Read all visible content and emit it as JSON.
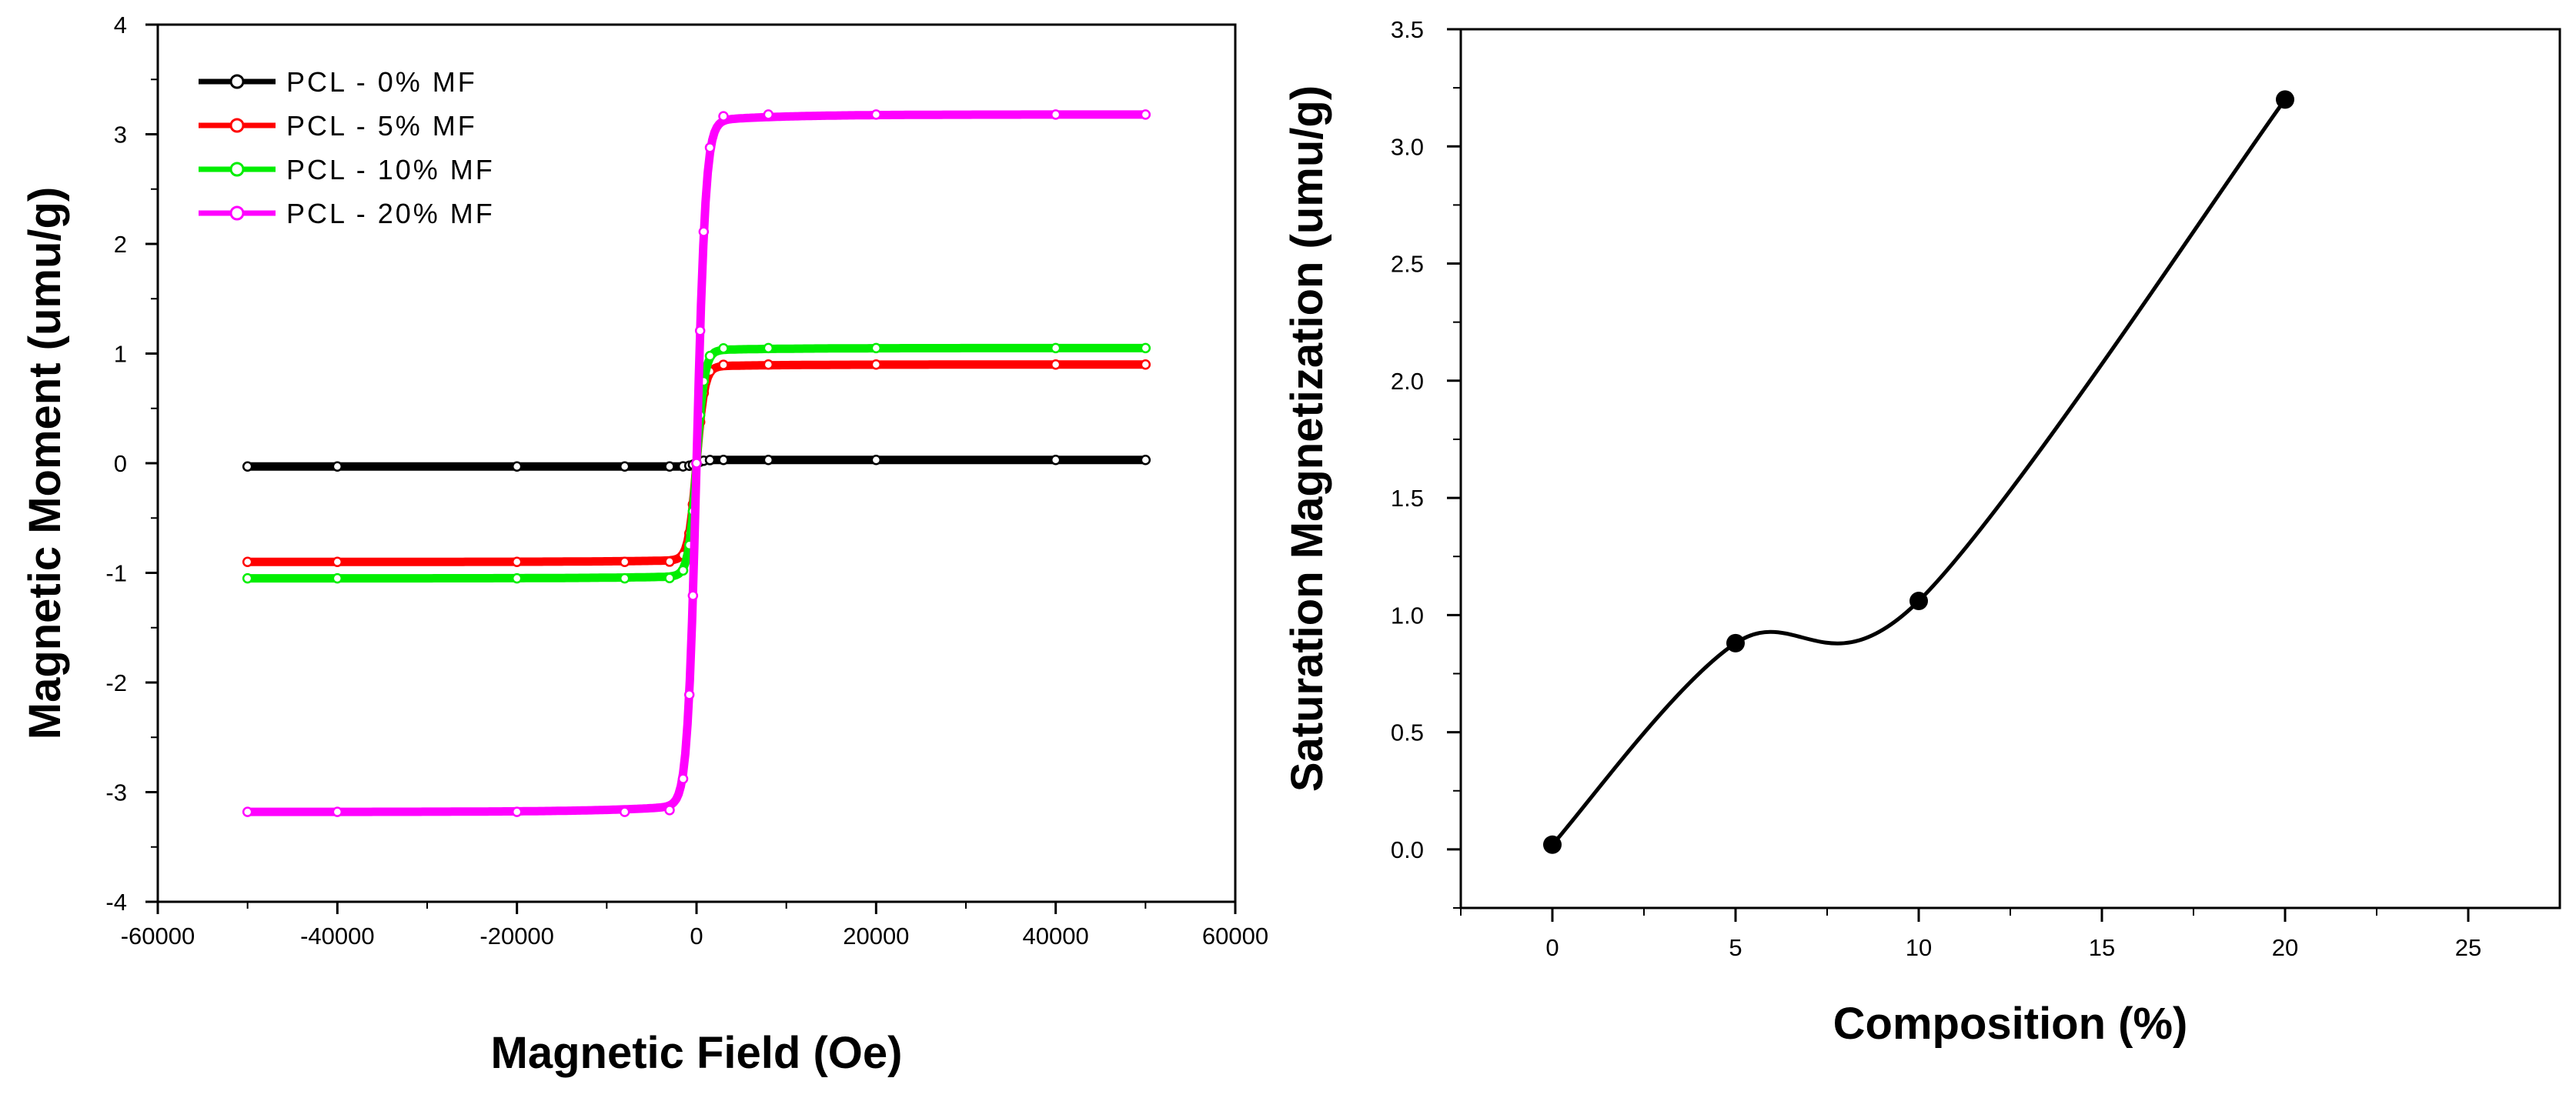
{
  "chart_data": [
    {
      "type": "line",
      "title": "",
      "xlabel": "Magnetic Field (Oe)",
      "ylabel": "Magnetic Moment (umu/g)",
      "xlim": [
        -60000,
        60000
      ],
      "ylim": [
        -4,
        4
      ],
      "x_ticks": [
        "-60000",
        "-40000",
        "-20000",
        "0",
        "20000",
        "40000",
        "60000"
      ],
      "y_ticks": [
        "-4",
        "-3",
        "-2",
        "-1",
        "0",
        "1",
        "2",
        "3",
        "4"
      ],
      "x_tick_values": [
        -60000,
        -40000,
        -20000,
        0,
        20000,
        40000,
        60000
      ],
      "y_tick_values": [
        -4,
        -3,
        -2,
        -1,
        0,
        1,
        2,
        3,
        4
      ],
      "legend_position": "top-left",
      "series": [
        {
          "name": "PCL - 0% MF",
          "color": "#000000",
          "Ms": 0.03,
          "knee": 800,
          "x": [
            -50000,
            -40000,
            -20000,
            -5000,
            -1000,
            0,
            1000,
            5000,
            20000,
            40000,
            50000
          ],
          "y": [
            -0.03,
            -0.03,
            -0.03,
            -0.03,
            -0.02,
            0.0,
            0.02,
            0.03,
            0.03,
            0.03,
            0.03
          ]
        },
        {
          "name": "PCL - 5% MF",
          "color": "#ff0000",
          "Ms": 0.9,
          "knee": 900,
          "x": [
            -50000,
            -40000,
            -20000,
            -5000,
            -1000,
            0,
            1000,
            5000,
            20000,
            40000,
            50000
          ],
          "y": [
            -0.9,
            -0.89,
            -0.88,
            -0.86,
            -0.75,
            0.0,
            0.75,
            0.86,
            0.88,
            0.89,
            0.9
          ]
        },
        {
          "name": "PCL - 10% MF",
          "color": "#00ee00",
          "Ms": 1.05,
          "knee": 900,
          "x": [
            -50000,
            -40000,
            -20000,
            -5000,
            -1000,
            0,
            1000,
            5000,
            20000,
            40000,
            50000
          ],
          "y": [
            -1.05,
            -1.05,
            -1.05,
            -1.03,
            -0.9,
            0.0,
            0.9,
            1.03,
            1.05,
            1.05,
            1.05
          ]
        },
        {
          "name": "PCL - 20% MF",
          "color": "#ff00ff",
          "Ms": 3.18,
          "knee": 1000,
          "x": [
            -50000,
            -40000,
            -20000,
            -5000,
            -1000,
            0,
            1000,
            5000,
            20000,
            40000,
            50000
          ],
          "y": [
            -3.18,
            -3.18,
            -3.18,
            -3.12,
            -2.7,
            0.0,
            2.7,
            3.12,
            3.18,
            3.18,
            3.18
          ]
        }
      ]
    },
    {
      "type": "line",
      "title": "",
      "xlabel": "Composition (%)",
      "ylabel": "Saturation Magnetization (umu/g)",
      "xlim": [
        -2.5,
        27.5
      ],
      "ylim": [
        -0.25,
        3.5
      ],
      "x_ticks": [
        "0",
        "5",
        "10",
        "15",
        "20",
        "25"
      ],
      "y_ticks": [
        "0.0",
        "0.5",
        "1.0",
        "1.5",
        "2.0",
        "2.5",
        "3.0",
        "3.5"
      ],
      "x_tick_values": [
        0,
        5,
        10,
        15,
        20,
        25
      ],
      "y_tick_values": [
        0,
        0.5,
        1.0,
        1.5,
        2.0,
        2.5,
        3.0,
        3.5
      ],
      "series": [
        {
          "name": "Saturation Magnetization",
          "color": "#000000",
          "x": [
            0,
            5,
            10,
            20
          ],
          "y": [
            0.02,
            0.88,
            1.06,
            3.2
          ]
        }
      ]
    }
  ]
}
